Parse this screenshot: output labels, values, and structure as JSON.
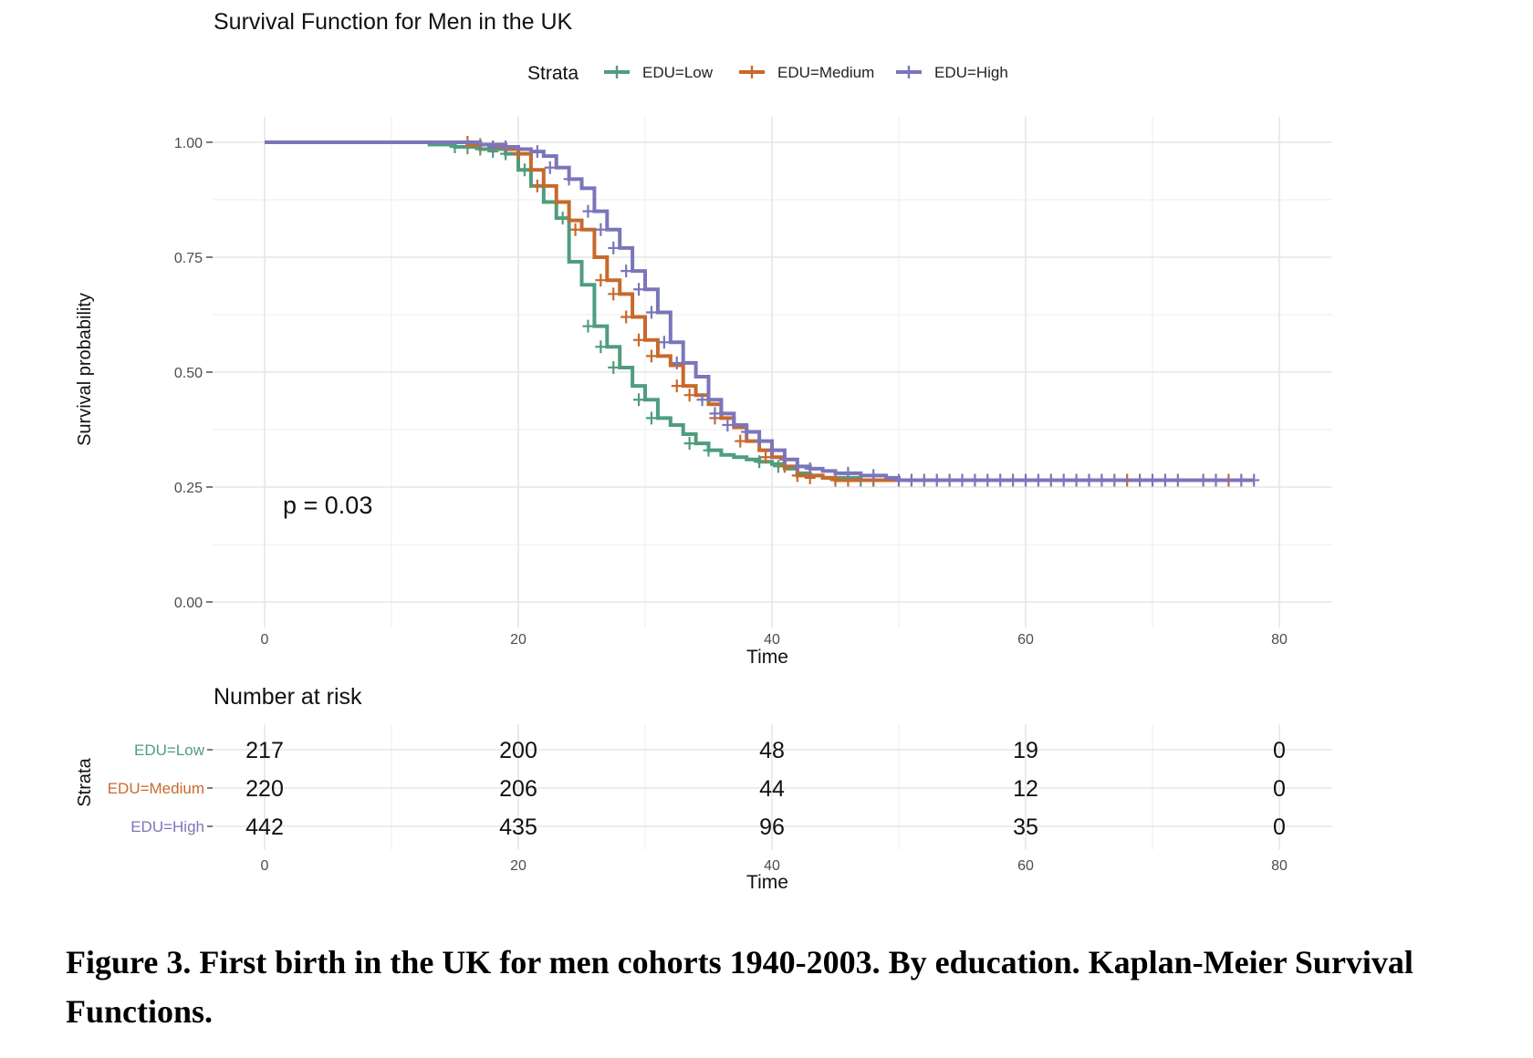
{
  "chart_data": {
    "type": "line",
    "subtype": "kaplan-meier step",
    "title": "Survival Function for Men in the UK",
    "xlabel": "Time",
    "ylabel": "Survival probability",
    "xlim": [
      0,
      80
    ],
    "ylim": [
      0,
      1
    ],
    "x_ticks": [
      "0",
      "20",
      "40",
      "60",
      "80"
    ],
    "y_ticks": [
      "0.00",
      "0.25",
      "0.50",
      "0.75",
      "1.00"
    ],
    "legend_title": "Strata",
    "legend_position": "top",
    "pvalue_text": "p = 0.03",
    "series": [
      {
        "name": "EDU=Low",
        "color": "#4f9d7e",
        "steps": [
          [
            0,
            1.0
          ],
          [
            13,
            0.995
          ],
          [
            15,
            0.99
          ],
          [
            17,
            0.985
          ],
          [
            19,
            0.975
          ],
          [
            20,
            0.94
          ],
          [
            21,
            0.905
          ],
          [
            22,
            0.87
          ],
          [
            23,
            0.835
          ],
          [
            24,
            0.74
          ],
          [
            25,
            0.69
          ],
          [
            26,
            0.6
          ],
          [
            27,
            0.555
          ],
          [
            28,
            0.51
          ],
          [
            29,
            0.47
          ],
          [
            30,
            0.44
          ],
          [
            31,
            0.4
          ],
          [
            32,
            0.385
          ],
          [
            33,
            0.365
          ],
          [
            34,
            0.345
          ],
          [
            35,
            0.33
          ],
          [
            36,
            0.32
          ],
          [
            37,
            0.315
          ],
          [
            38,
            0.31
          ],
          [
            39,
            0.305
          ],
          [
            40,
            0.3
          ],
          [
            41,
            0.29
          ],
          [
            42,
            0.28
          ],
          [
            43,
            0.275
          ],
          [
            44,
            0.27
          ],
          [
            47,
            0.265
          ],
          [
            78,
            0.265
          ]
        ],
        "censors": [
          [
            15,
            0.99
          ],
          [
            16,
            0.988
          ],
          [
            17,
            0.985
          ],
          [
            18,
            0.98
          ],
          [
            19,
            0.975
          ],
          [
            20.5,
            0.94
          ],
          [
            23.5,
            0.835
          ],
          [
            25.5,
            0.6
          ],
          [
            26.5,
            0.555
          ],
          [
            27.5,
            0.51
          ],
          [
            29.5,
            0.44
          ],
          [
            30.5,
            0.4
          ],
          [
            33.5,
            0.345
          ],
          [
            35,
            0.33
          ],
          [
            39,
            0.305
          ],
          [
            40.5,
            0.295
          ],
          [
            47,
            0.265
          ],
          [
            48,
            0.265
          ]
        ]
      },
      {
        "name": "EDU=Medium",
        "color": "#c8692c",
        "steps": [
          [
            0,
            1.0
          ],
          [
            16,
            0.995
          ],
          [
            18,
            0.99
          ],
          [
            19,
            0.985
          ],
          [
            20,
            0.975
          ],
          [
            21,
            0.94
          ],
          [
            22,
            0.905
          ],
          [
            23,
            0.87
          ],
          [
            24,
            0.83
          ],
          [
            25,
            0.81
          ],
          [
            26,
            0.75
          ],
          [
            27,
            0.7
          ],
          [
            28,
            0.67
          ],
          [
            29,
            0.62
          ],
          [
            30,
            0.57
          ],
          [
            31,
            0.535
          ],
          [
            32,
            0.515
          ],
          [
            33,
            0.47
          ],
          [
            34,
            0.45
          ],
          [
            35,
            0.43
          ],
          [
            36,
            0.4
          ],
          [
            37,
            0.38
          ],
          [
            38,
            0.35
          ],
          [
            39,
            0.33
          ],
          [
            40,
            0.315
          ],
          [
            41,
            0.295
          ],
          [
            42,
            0.275
          ],
          [
            44,
            0.27
          ],
          [
            45,
            0.265
          ],
          [
            76,
            0.265
          ],
          [
            78,
            0.265
          ]
        ],
        "censors": [
          [
            16,
            1.0
          ],
          [
            17,
            0.995
          ],
          [
            18,
            0.99
          ],
          [
            20,
            0.975
          ],
          [
            21.5,
            0.905
          ],
          [
            24.5,
            0.81
          ],
          [
            26.5,
            0.7
          ],
          [
            27.5,
            0.67
          ],
          [
            28.5,
            0.62
          ],
          [
            29.5,
            0.57
          ],
          [
            30.5,
            0.535
          ],
          [
            32.5,
            0.47
          ],
          [
            33.5,
            0.45
          ],
          [
            35.5,
            0.4
          ],
          [
            37.5,
            0.35
          ],
          [
            39.5,
            0.315
          ],
          [
            41,
            0.295
          ],
          [
            42,
            0.275
          ],
          [
            43,
            0.27
          ],
          [
            45,
            0.265
          ],
          [
            46,
            0.265
          ],
          [
            48,
            0.265
          ],
          [
            68,
            0.265
          ],
          [
            76,
            0.265
          ]
        ]
      },
      {
        "name": "EDU=High",
        "color": "#7a76b9",
        "steps": [
          [
            0,
            1.0
          ],
          [
            17,
            0.995
          ],
          [
            19,
            0.99
          ],
          [
            20,
            0.985
          ],
          [
            21,
            0.98
          ],
          [
            22,
            0.97
          ],
          [
            23,
            0.945
          ],
          [
            24,
            0.92
          ],
          [
            25,
            0.9
          ],
          [
            26,
            0.85
          ],
          [
            27,
            0.81
          ],
          [
            28,
            0.77
          ],
          [
            29,
            0.72
          ],
          [
            30,
            0.68
          ],
          [
            31,
            0.63
          ],
          [
            32,
            0.565
          ],
          [
            33,
            0.52
          ],
          [
            34,
            0.49
          ],
          [
            35,
            0.44
          ],
          [
            36,
            0.41
          ],
          [
            37,
            0.385
          ],
          [
            38,
            0.37
          ],
          [
            39,
            0.35
          ],
          [
            40,
            0.33
          ],
          [
            41,
            0.31
          ],
          [
            42,
            0.295
          ],
          [
            43,
            0.29
          ],
          [
            44,
            0.285
          ],
          [
            45,
            0.28
          ],
          [
            47,
            0.275
          ],
          [
            49,
            0.27
          ],
          [
            50,
            0.265
          ],
          [
            78,
            0.265
          ]
        ],
        "censors": [
          [
            18,
            0.99
          ],
          [
            19,
            0.99
          ],
          [
            21.5,
            0.98
          ],
          [
            22.5,
            0.945
          ],
          [
            24,
            0.92
          ],
          [
            25.5,
            0.85
          ],
          [
            26.5,
            0.81
          ],
          [
            27.5,
            0.77
          ],
          [
            28.5,
            0.72
          ],
          [
            29.5,
            0.68
          ],
          [
            30.5,
            0.63
          ],
          [
            31.5,
            0.565
          ],
          [
            32.5,
            0.52
          ],
          [
            34.5,
            0.44
          ],
          [
            35.5,
            0.41
          ],
          [
            36.5,
            0.385
          ],
          [
            38,
            0.37
          ],
          [
            39,
            0.35
          ],
          [
            40,
            0.33
          ],
          [
            41,
            0.31
          ],
          [
            42,
            0.295
          ],
          [
            43,
            0.29
          ],
          [
            46,
            0.28
          ],
          [
            48,
            0.275
          ],
          [
            50,
            0.265
          ],
          [
            51,
            0.265
          ],
          [
            52,
            0.265
          ],
          [
            53,
            0.265
          ],
          [
            54,
            0.265
          ],
          [
            55,
            0.265
          ],
          [
            56,
            0.265
          ],
          [
            57,
            0.265
          ],
          [
            58,
            0.265
          ],
          [
            59,
            0.265
          ],
          [
            60,
            0.265
          ],
          [
            61,
            0.265
          ],
          [
            62,
            0.265
          ],
          [
            63,
            0.265
          ],
          [
            64,
            0.265
          ],
          [
            65,
            0.265
          ],
          [
            66,
            0.265
          ],
          [
            67,
            0.265
          ],
          [
            69,
            0.265
          ],
          [
            70,
            0.265
          ],
          [
            71,
            0.265
          ],
          [
            72,
            0.265
          ],
          [
            74,
            0.265
          ],
          [
            75,
            0.265
          ],
          [
            77,
            0.265
          ],
          [
            78,
            0.265
          ]
        ]
      }
    ],
    "risk_table": {
      "title": "Number at risk",
      "ylabel": "Strata",
      "xlabel": "Time",
      "times": [
        0,
        20,
        40,
        60,
        80
      ],
      "x_ticks": [
        "0",
        "20",
        "40",
        "60",
        "80"
      ],
      "rows": [
        {
          "name": "EDU=Low",
          "color": "#4f9d7e",
          "counts": [
            "217",
            "200",
            "48",
            "19",
            "0"
          ]
        },
        {
          "name": "EDU=Medium",
          "color": "#c8692c",
          "counts": [
            "220",
            "206",
            "44",
            "12",
            "0"
          ]
        },
        {
          "name": "EDU=High",
          "color": "#7a76b9",
          "counts": [
            "442",
            "435",
            "96",
            "35",
            "0"
          ]
        }
      ]
    }
  },
  "caption": "Figure 3. First birth in the UK for men cohorts 1940-2003. By education. Kaplan-Meier Survival Functions."
}
